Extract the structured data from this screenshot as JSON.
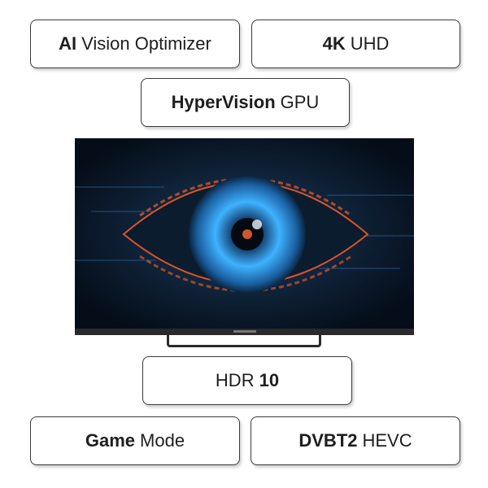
{
  "badges": [
    {
      "bold": "AI",
      "text": "Vision Optimizer"
    },
    {
      "bold": "4K",
      "text": "UHD"
    },
    {
      "bold": "HyperVision",
      "text": "GPU"
    },
    {
      "text": "HDR",
      "bold": "10"
    },
    {
      "bold": "Game",
      "text": "Mode"
    },
    {
      "bold": "DVBT2",
      "text": "HEVC"
    }
  ],
  "tv": {
    "screen_image": "blue-cyber-eye-illustration",
    "colors": {
      "iris": "#3fb2ff",
      "accent": "#d9542a",
      "background": "#07121f"
    }
  }
}
